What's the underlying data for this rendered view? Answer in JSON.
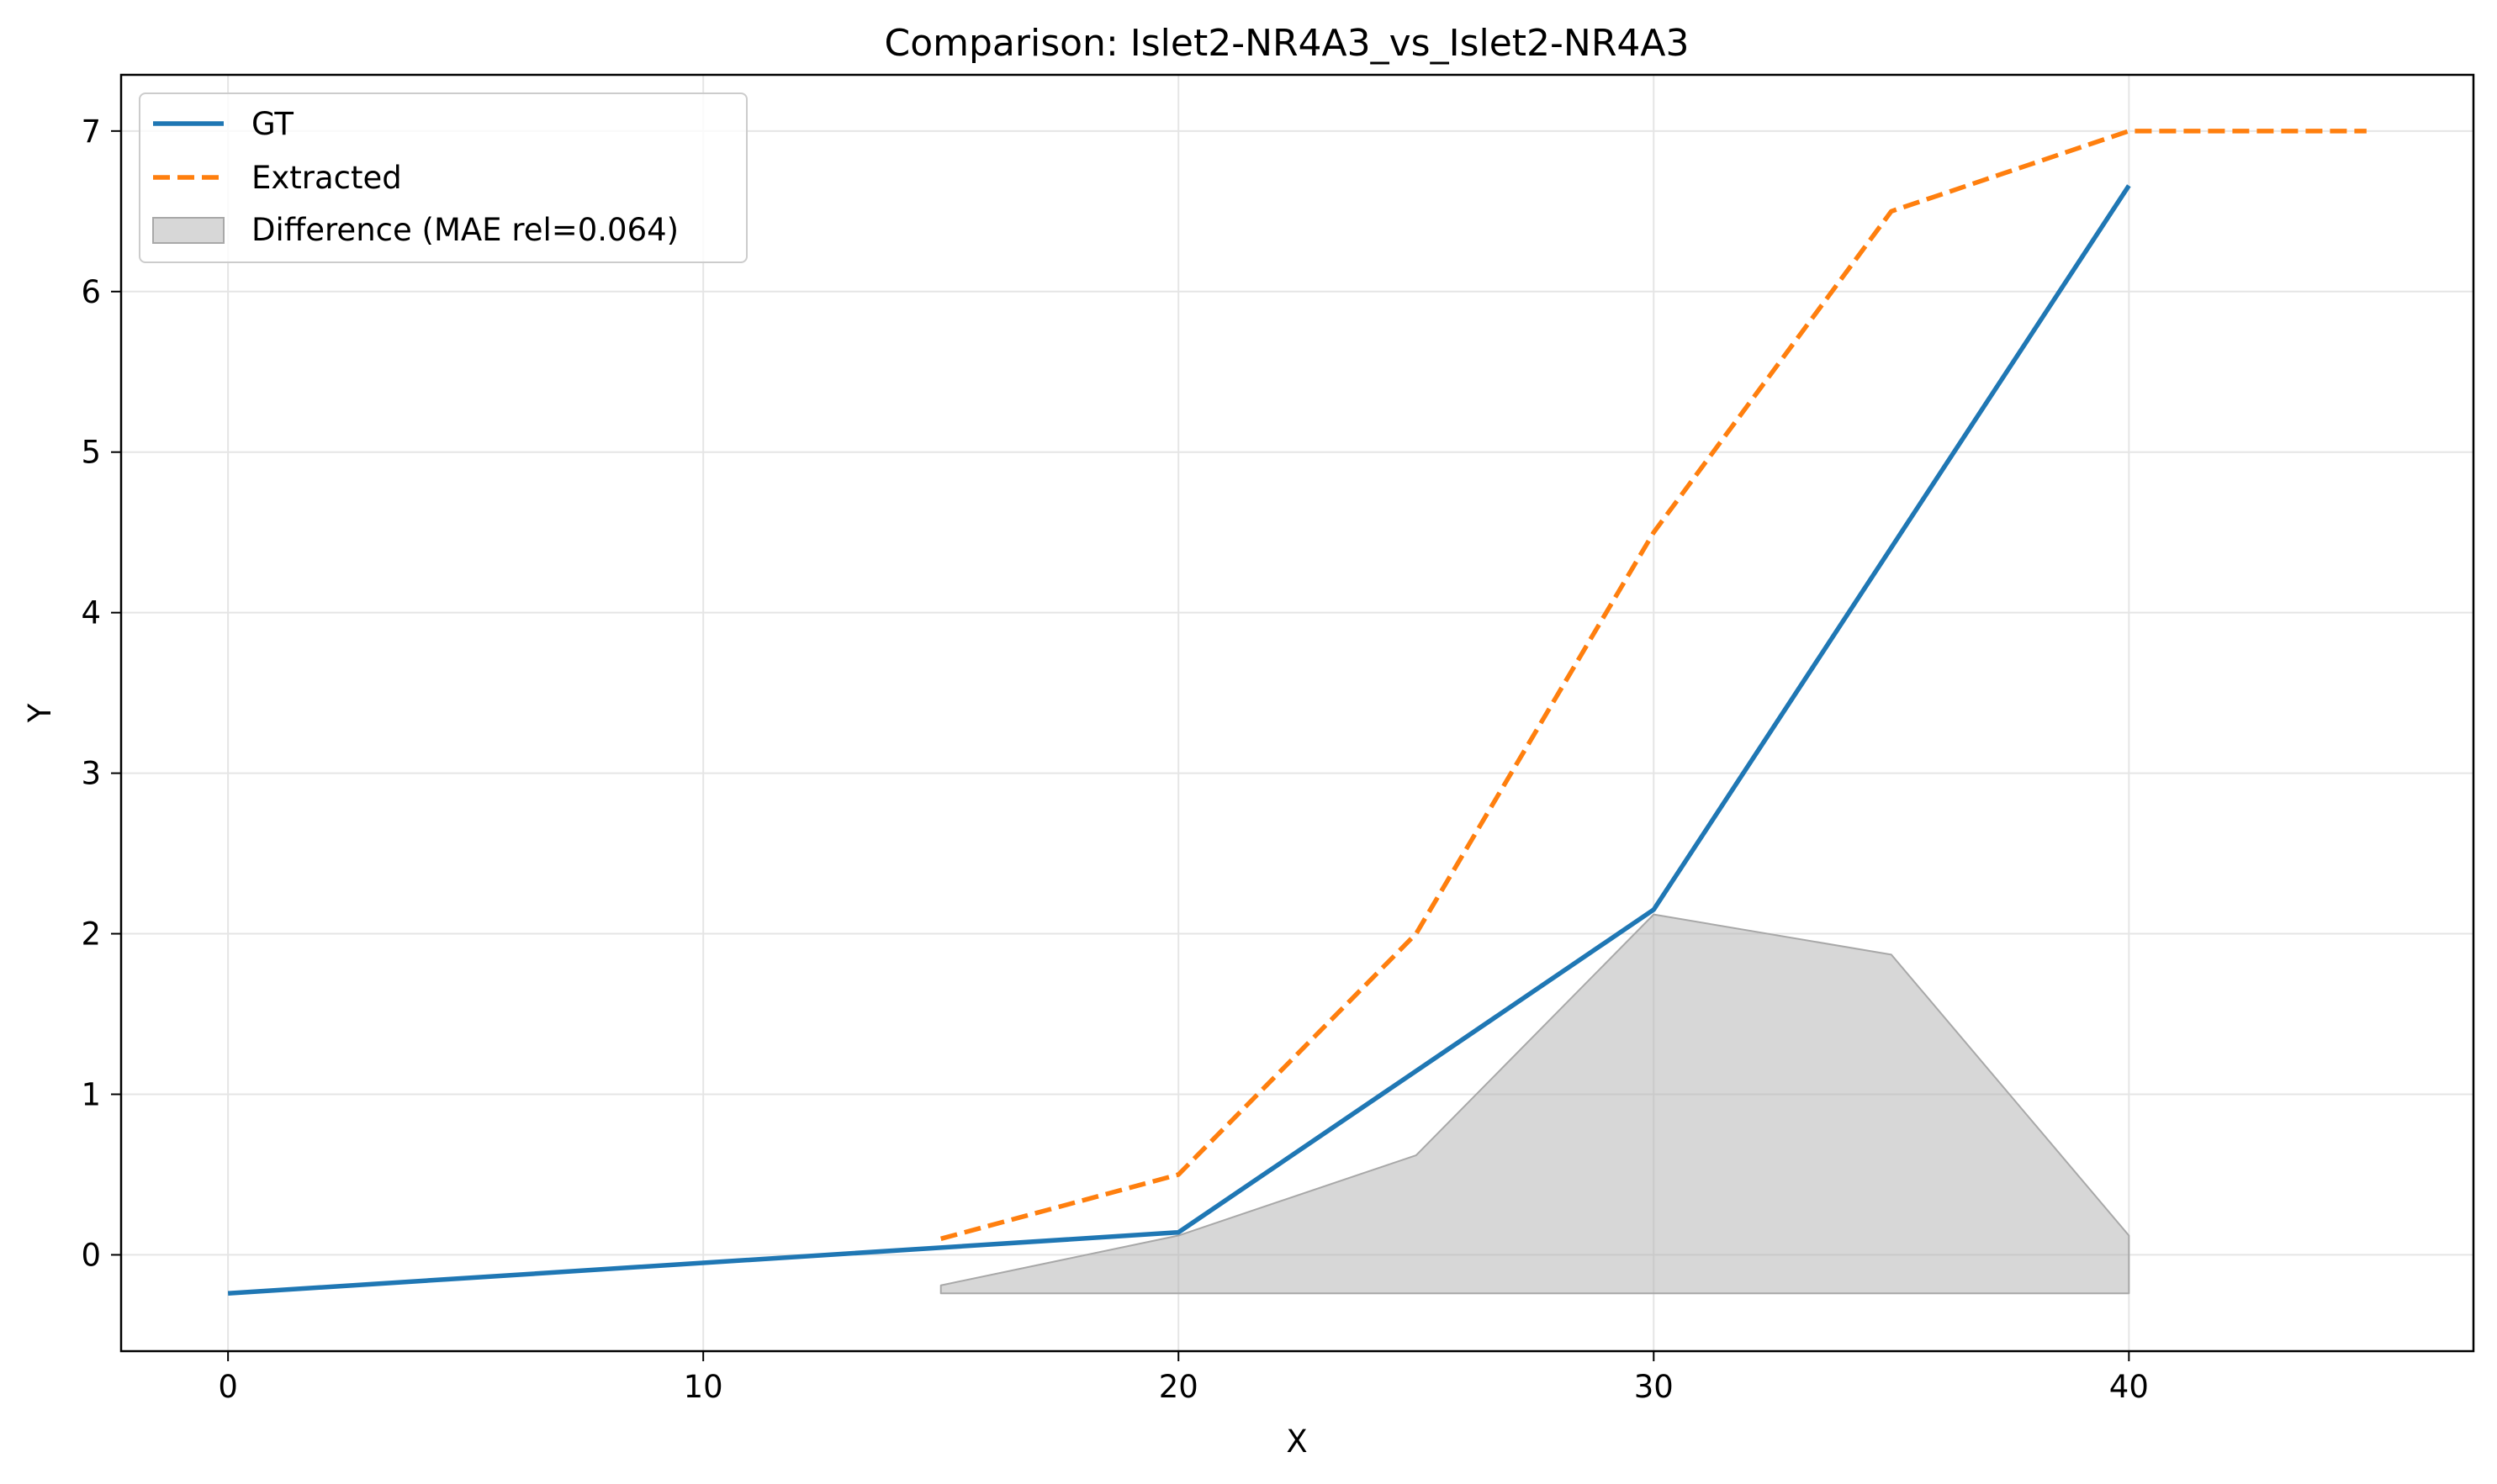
{
  "chart_data": {
    "type": "line",
    "title": "Comparison: Islet2-NR4A3_vs_Islet2-NR4A3",
    "xlabel": "X",
    "ylabel": "Y",
    "xlim": [
      -2.25,
      47.25
    ],
    "ylim": [
      -0.6,
      7.35
    ],
    "xticks": [
      0,
      10,
      20,
      30,
      40
    ],
    "yticks": [
      0,
      1,
      2,
      3,
      4,
      5,
      6,
      7
    ],
    "grid": true,
    "legend_position": "top-left",
    "series": [
      {
        "name": "GT",
        "style": "solid",
        "color": "#1f77b4",
        "points": [
          [
            0,
            -0.24
          ],
          [
            20,
            0.14
          ],
          [
            30,
            2.15
          ],
          [
            40,
            6.66
          ]
        ]
      },
      {
        "name": "Extracted",
        "style": "dashed",
        "color": "#ff7f0e",
        "points": [
          [
            15,
            0.1
          ],
          [
            20,
            0.5
          ],
          [
            25,
            2.0
          ],
          [
            30,
            4.5
          ],
          [
            35,
            6.5
          ],
          [
            40,
            7.0
          ],
          [
            45,
            7.0
          ]
        ]
      }
    ],
    "difference": {
      "name": "Difference (MAE rel=0.064)",
      "color": "#b0b0b0",
      "baseline": -0.24,
      "points": [
        [
          15,
          -0.19
        ],
        [
          20,
          0.12
        ],
        [
          25,
          0.62
        ],
        [
          30,
          2.12
        ],
        [
          35,
          1.87
        ],
        [
          40,
          0.12
        ]
      ]
    }
  }
}
